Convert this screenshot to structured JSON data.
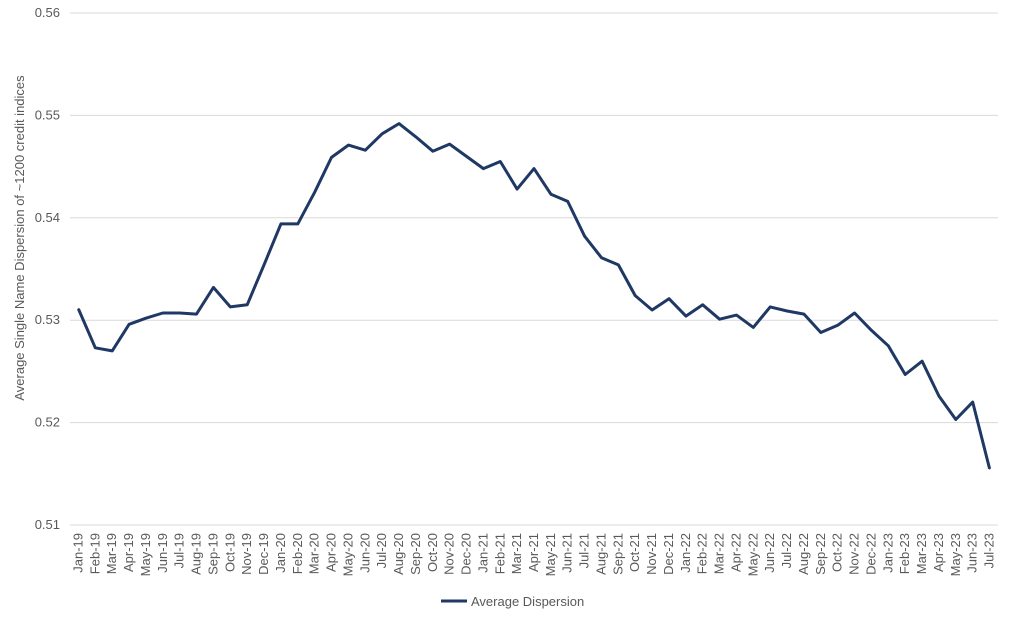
{
  "chart_data": {
    "type": "line",
    "ylabel": "Average Single Name Dispersion of ~1200 credit indices",
    "xlabel": "",
    "ylim": [
      0.51,
      0.56
    ],
    "yticks": [
      "0.51",
      "0.52",
      "0.53",
      "0.54",
      "0.55",
      "0.56"
    ],
    "grid": true,
    "legend_position": "bottom",
    "line_color": "#1f3864",
    "categories": [
      "Jan-19",
      "Feb-19",
      "Mar-19",
      "Apr-19",
      "May-19",
      "Jun-19",
      "Jul-19",
      "Aug-19",
      "Sep-19",
      "Oct-19",
      "Nov-19",
      "Dec-19",
      "Jan-20",
      "Feb-20",
      "Mar-20",
      "Apr-20",
      "May-20",
      "Jun-20",
      "Jul-20",
      "Aug-20",
      "Sep-20",
      "Oct-20",
      "Nov-20",
      "Dec-20",
      "Jan-21",
      "Feb-21",
      "Mar-21",
      "Apr-21",
      "May-21",
      "Jun-21",
      "Jul-21",
      "Aug-21",
      "Sep-21",
      "Oct-21",
      "Nov-21",
      "Dec-21",
      "Jan-22",
      "Feb-22",
      "Mar-22",
      "Apr-22",
      "May-22",
      "Jun-22",
      "Jul-22",
      "Aug-22",
      "Sep-22",
      "Oct-22",
      "Nov-22",
      "Dec-22",
      "Jan-23",
      "Feb-23",
      "Mar-23",
      "Apr-23",
      "May-23",
      "Jun-23",
      "Jul-23"
    ],
    "series": [
      {
        "name": "Average Dispersion",
        "values": [
          0.5311,
          0.5273,
          0.527,
          0.5296,
          0.5302,
          0.5307,
          0.5307,
          0.5306,
          0.5332,
          0.5313,
          0.5315,
          0.5354,
          0.5394,
          0.5394,
          0.5425,
          0.5459,
          0.5471,
          0.5466,
          0.5482,
          0.5492,
          0.5479,
          0.5465,
          0.5472,
          0.546,
          0.5448,
          0.5455,
          0.5428,
          0.5448,
          0.5423,
          0.5416,
          0.5382,
          0.5361,
          0.5354,
          0.5324,
          0.531,
          0.5321,
          0.5304,
          0.5315,
          0.5301,
          0.5305,
          0.5293,
          0.5313,
          0.5309,
          0.5306,
          0.5288,
          0.5295,
          0.5307,
          0.529,
          0.5275,
          0.5247,
          0.526,
          0.5226,
          0.5203,
          0.522,
          0.5155
        ]
      }
    ]
  }
}
